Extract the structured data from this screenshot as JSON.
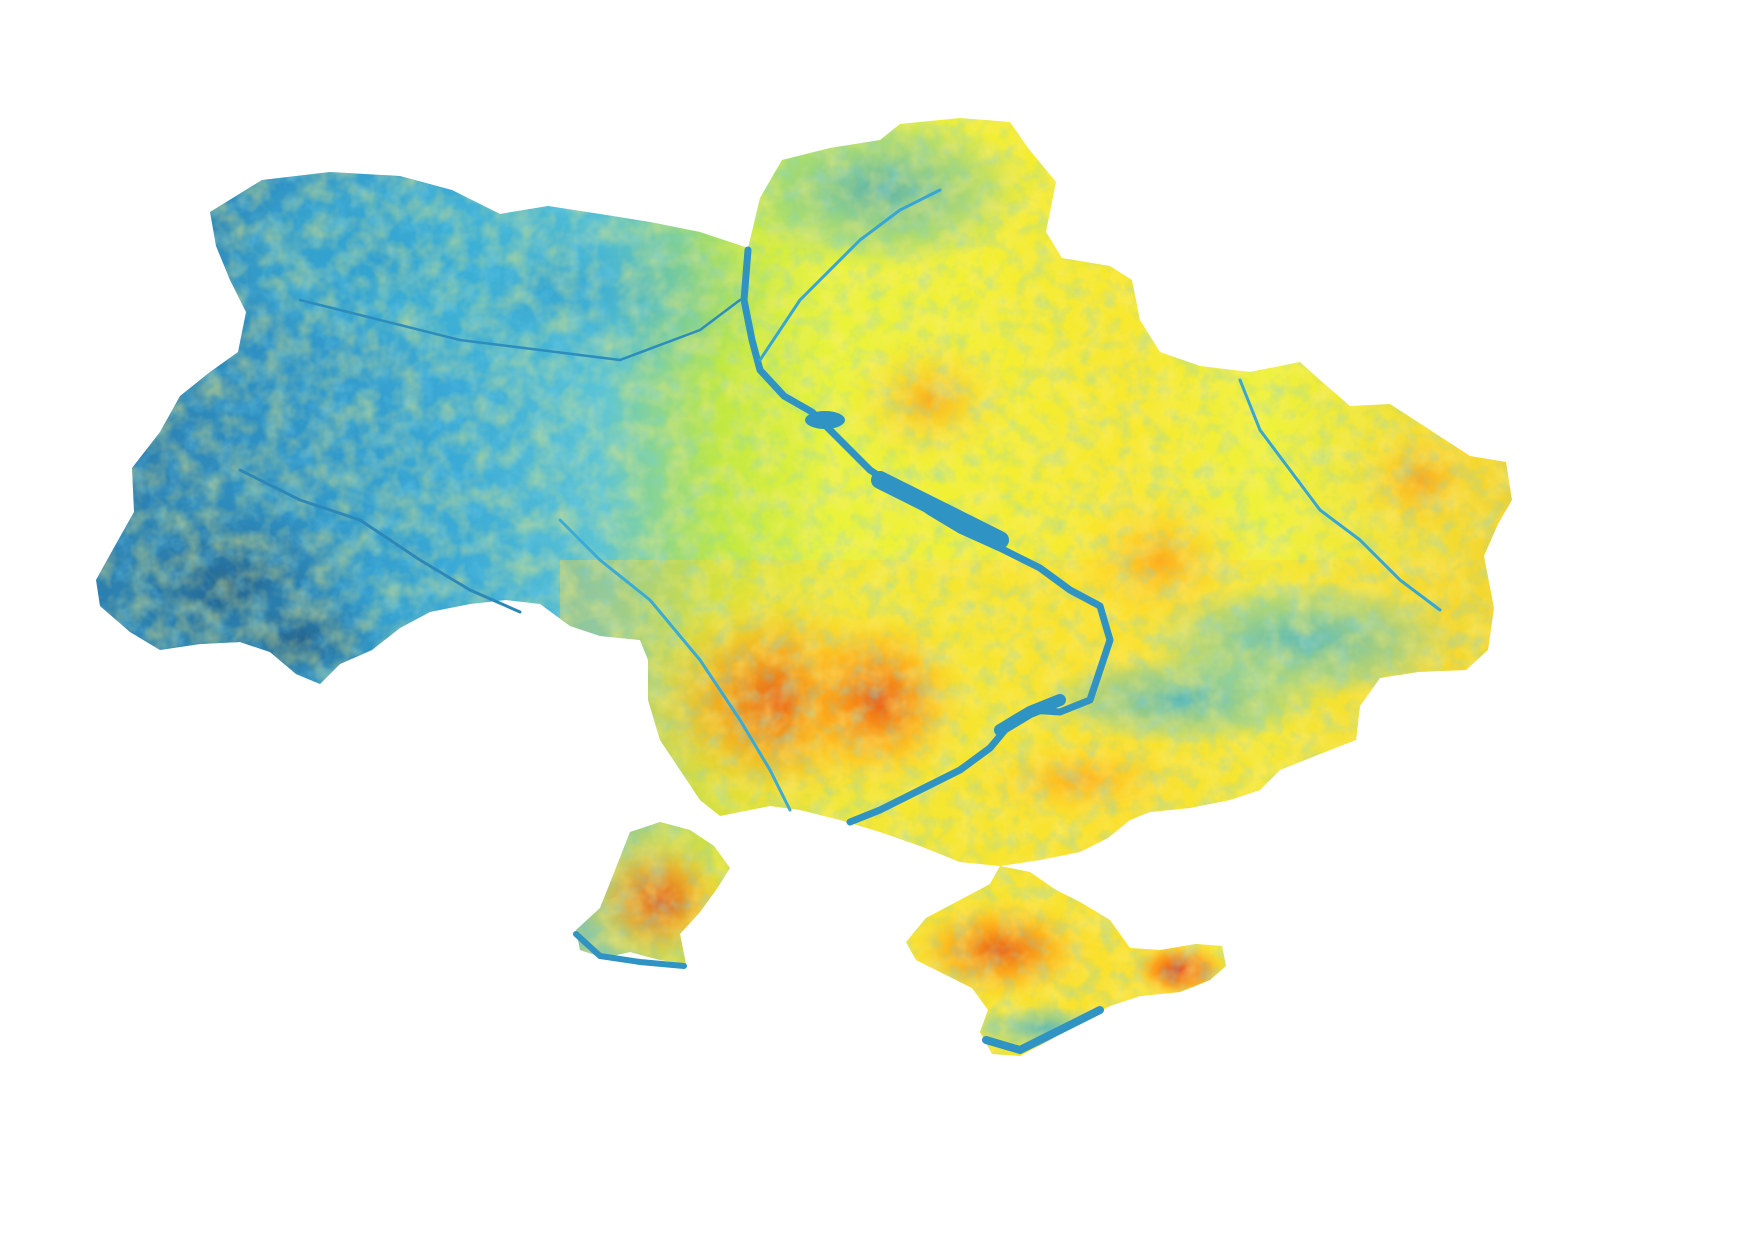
{
  "map": {
    "colors": {
      "background": "#ffffff",
      "low_dark": "#2f7fae",
      "low": "#2fa8d6",
      "low_mid": "#5cc8d8",
      "mid": "#d6f53c",
      "mid_high": "#ffe02a",
      "high": "#ff9a14",
      "very_high": "#e83212"
    },
    "regions": [
      "mainland-ukraine",
      "kinburn-peninsula",
      "crimea-peninsula",
      "dnipro-river",
      "desna-river",
      "siverskyi-donets-river"
    ],
    "color_scale": "blue-to-red"
  }
}
